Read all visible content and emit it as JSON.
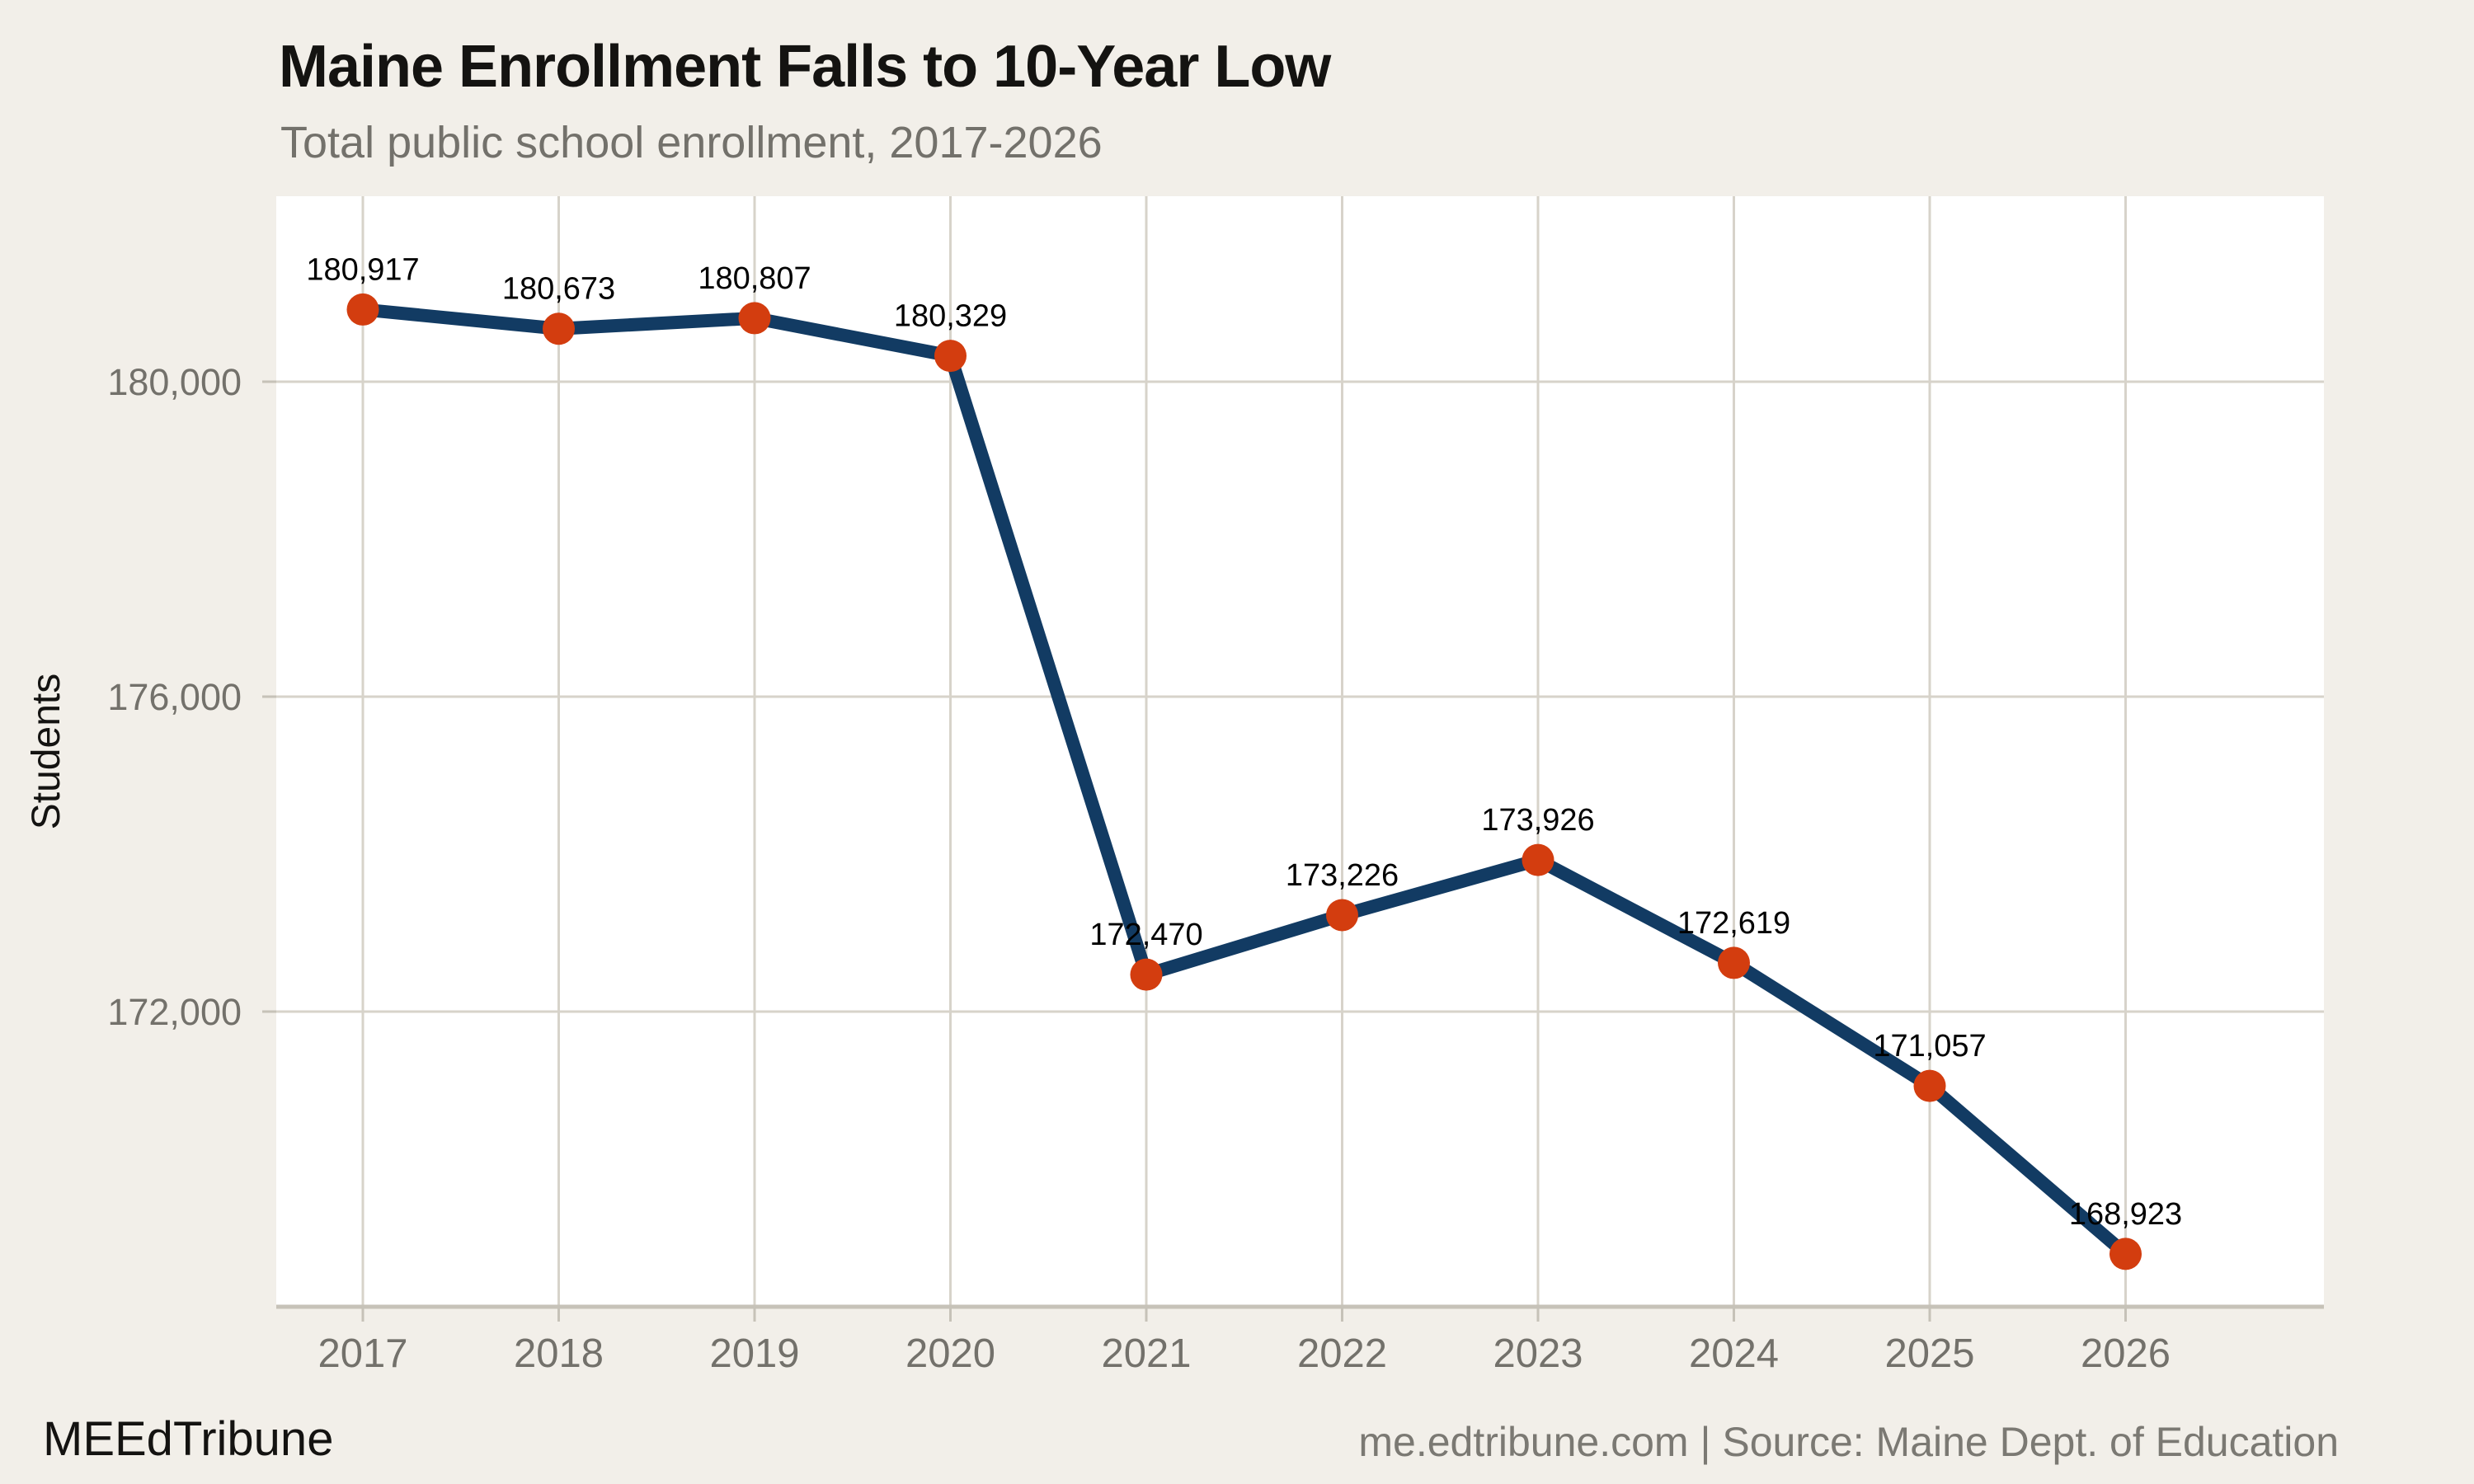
{
  "header": {
    "title": "Maine Enrollment Falls to 10-Year Low",
    "subtitle": "Total public school enrollment, 2017-2026"
  },
  "footer": {
    "brand": "MEEdTribune",
    "source": "me.edtribune.com | Source: Maine Dept. of Education"
  },
  "colors": {
    "background": "#f2efe9",
    "plot_background": "#ffffff",
    "gridline": "#d7d3ca",
    "axis_line": "#c6c2b8",
    "line": "#123b63",
    "marker": "#d33d0f",
    "tick_label": "#73716b",
    "data_label": "#000000",
    "axis_title": "#141311"
  },
  "chart_data": {
    "type": "line",
    "title": "Maine Enrollment Falls to 10-Year Low",
    "subtitle": "Total public school enrollment, 2017-2026",
    "xlabel": "",
    "ylabel": "Students",
    "categories": [
      "2017",
      "2018",
      "2019",
      "2020",
      "2021",
      "2022",
      "2023",
      "2024",
      "2025",
      "2026"
    ],
    "values": [
      180917,
      180673,
      180807,
      180329,
      172470,
      173226,
      173926,
      172619,
      171057,
      168923
    ],
    "point_labels": [
      "180,917",
      "180,673",
      "180,807",
      "180,329",
      "172,470",
      "173,226",
      "173,926",
      "172,619",
      "171,057",
      "168,923"
    ],
    "yticks": [
      {
        "value": 180000,
        "label": "180,000"
      },
      {
        "value": 176000,
        "label": "176,000"
      },
      {
        "value": 172000,
        "label": "172,000"
      }
    ],
    "ylim": [
      168252,
      182356
    ],
    "grid": true,
    "legend": "none",
    "series_name": "Total public school enrollment"
  }
}
